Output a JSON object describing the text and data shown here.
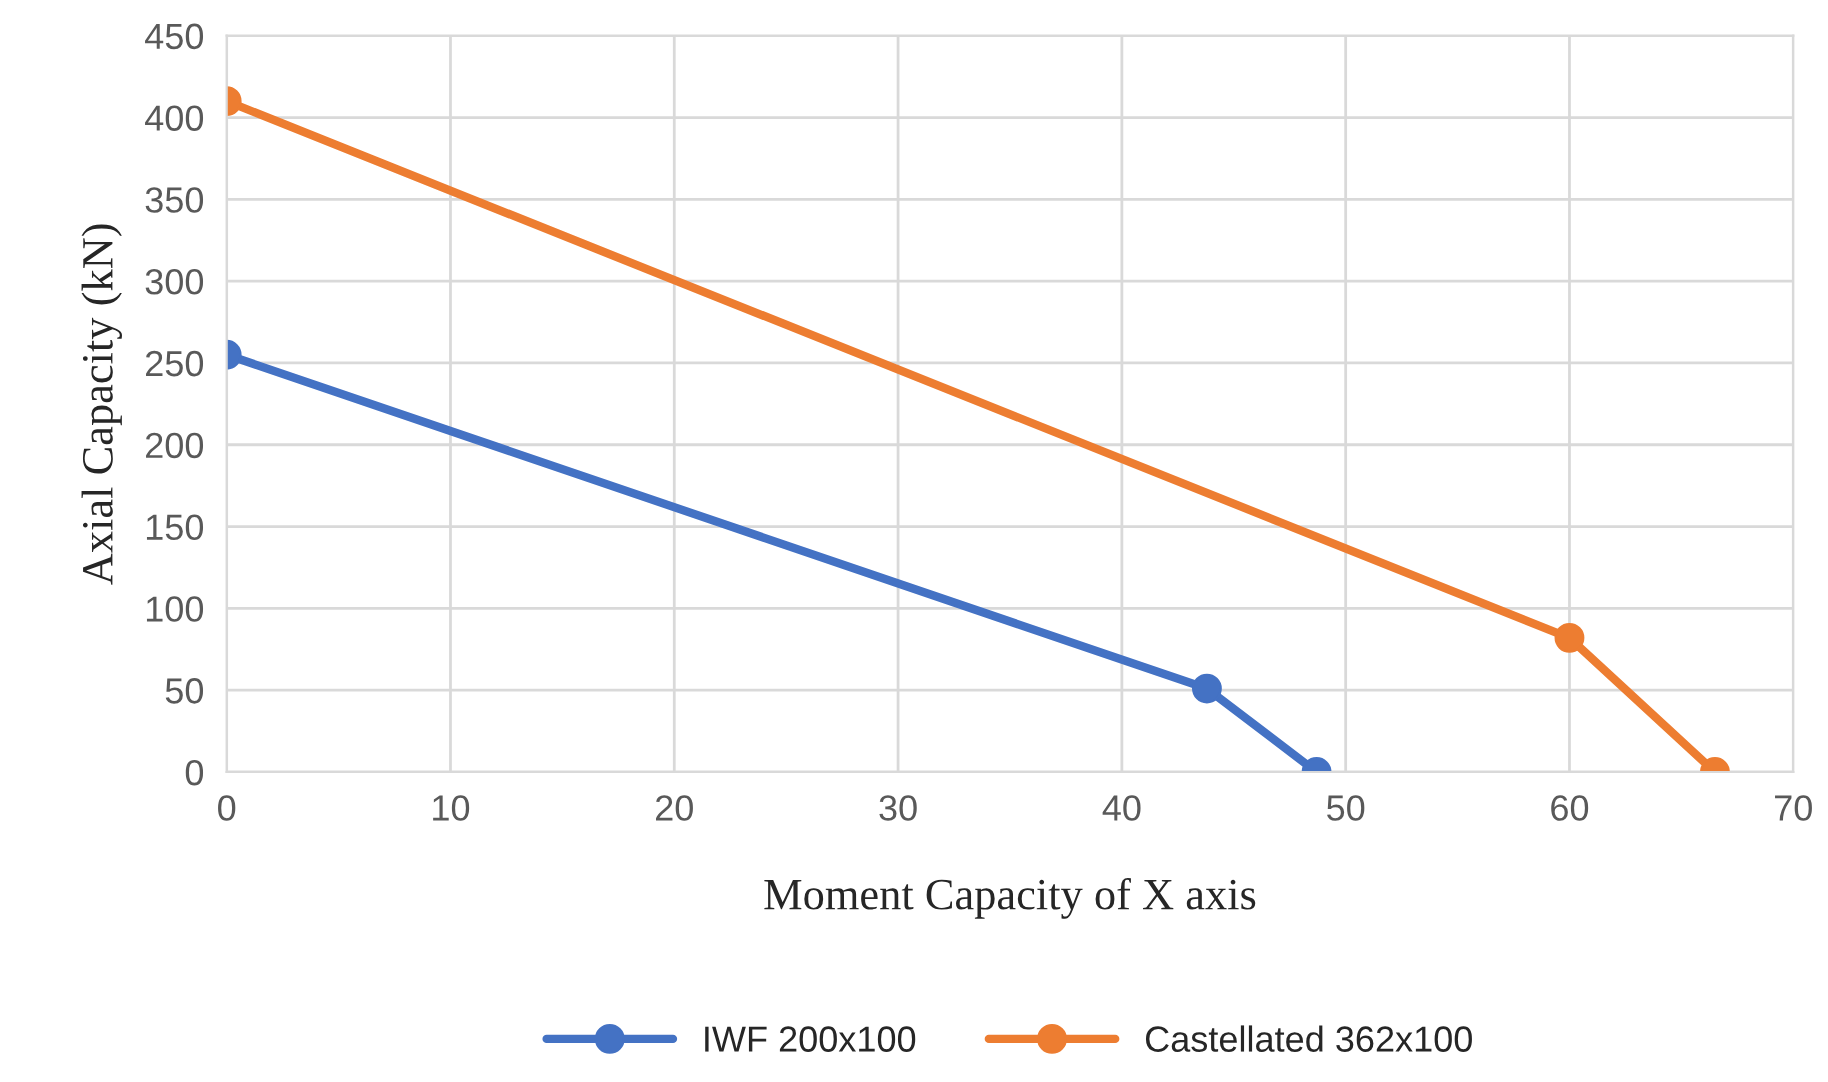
{
  "chart_data": {
    "type": "line",
    "xlabel": "Moment Capacity of X axis",
    "ylabel": "Axial Capacity (kN)",
    "series": [
      {
        "name": "IWF 200x100",
        "color": "#4472c4",
        "x": [
          0,
          43.8,
          48.7
        ],
        "values": [
          255,
          51,
          0
        ]
      },
      {
        "name": "Castellated 362x100",
        "color": "#ed7d31",
        "x": [
          0,
          60,
          66.5
        ],
        "values": [
          410,
          82,
          0
        ]
      }
    ],
    "xlim": [
      0,
      70
    ],
    "xticks": [
      0,
      10,
      20,
      30,
      40,
      50,
      60,
      70
    ],
    "ylim": [
      0,
      450
    ],
    "yticks": [
      0,
      50,
      100,
      150,
      200,
      250,
      300,
      350,
      400,
      450
    ],
    "grid": true,
    "legend": "bottom",
    "marker": "circle",
    "line_style": "solid"
  }
}
